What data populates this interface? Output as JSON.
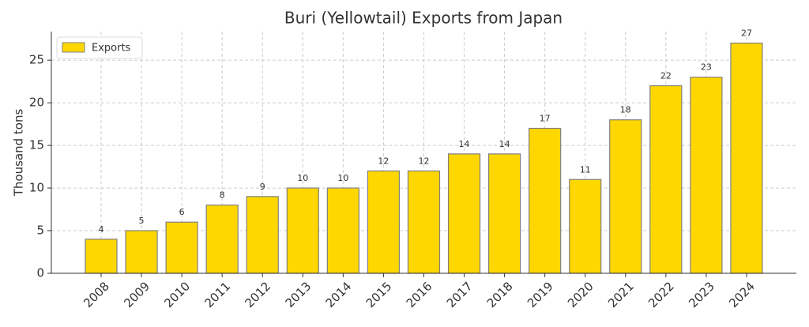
{
  "chart_data": {
    "type": "bar",
    "title": "Buri (Yellowtail) Exports from Japan",
    "ylabel": "Thousand tons",
    "categories": [
      "2008",
      "2009",
      "2010",
      "2011",
      "2012",
      "2013",
      "2014",
      "2015",
      "2016",
      "2017",
      "2018",
      "2019",
      "2020",
      "2021",
      "2022",
      "2023",
      "2024"
    ],
    "series": [
      {
        "name": "Exports",
        "color": "#ffd700",
        "values": [
          4,
          5,
          6,
          8,
          9,
          10,
          10,
          12,
          12,
          14,
          14,
          17,
          11,
          18,
          22,
          23,
          27
        ]
      }
    ],
    "ylim": [
      0,
      28.35
    ],
    "yticks": [
      0,
      5,
      10,
      15,
      20,
      25
    ],
    "grid": true,
    "legend": "upper left",
    "data_labels": true
  }
}
